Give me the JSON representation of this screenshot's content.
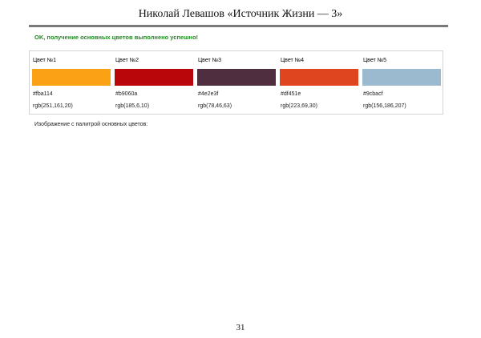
{
  "header": {
    "title": "Николай Левашов «Источник Жизни — 3»"
  },
  "status": {
    "message": "OK, получение основных цветов выполнено успешно!",
    "color": "#1f8a1f"
  },
  "palette": {
    "colors": [
      {
        "label": "Цвет №1",
        "hex": "#fba114",
        "rgb": "rgb(251,161,20)",
        "swatch": "#fba114"
      },
      {
        "label": "Цвет №2",
        "hex": "#b9060a",
        "rgb": "rgb(185,6,10)",
        "swatch": "#b9060a"
      },
      {
        "label": "Цвет №3",
        "hex": "#4e2e3f",
        "rgb": "rgb(78,46,63)",
        "swatch": "#4e2e3f"
      },
      {
        "label": "Цвет №4",
        "hex": "#df451e",
        "rgb": "rgb(223,69,30)",
        "swatch": "#df451e"
      },
      {
        "label": "Цвет №5",
        "hex": "#9cbacf",
        "rgb": "rgb(156,186,207)",
        "swatch": "#9cbacf"
      }
    ]
  },
  "caption": "Изображение с палитрой основных цветов:",
  "footer": {
    "page_number": "31"
  }
}
